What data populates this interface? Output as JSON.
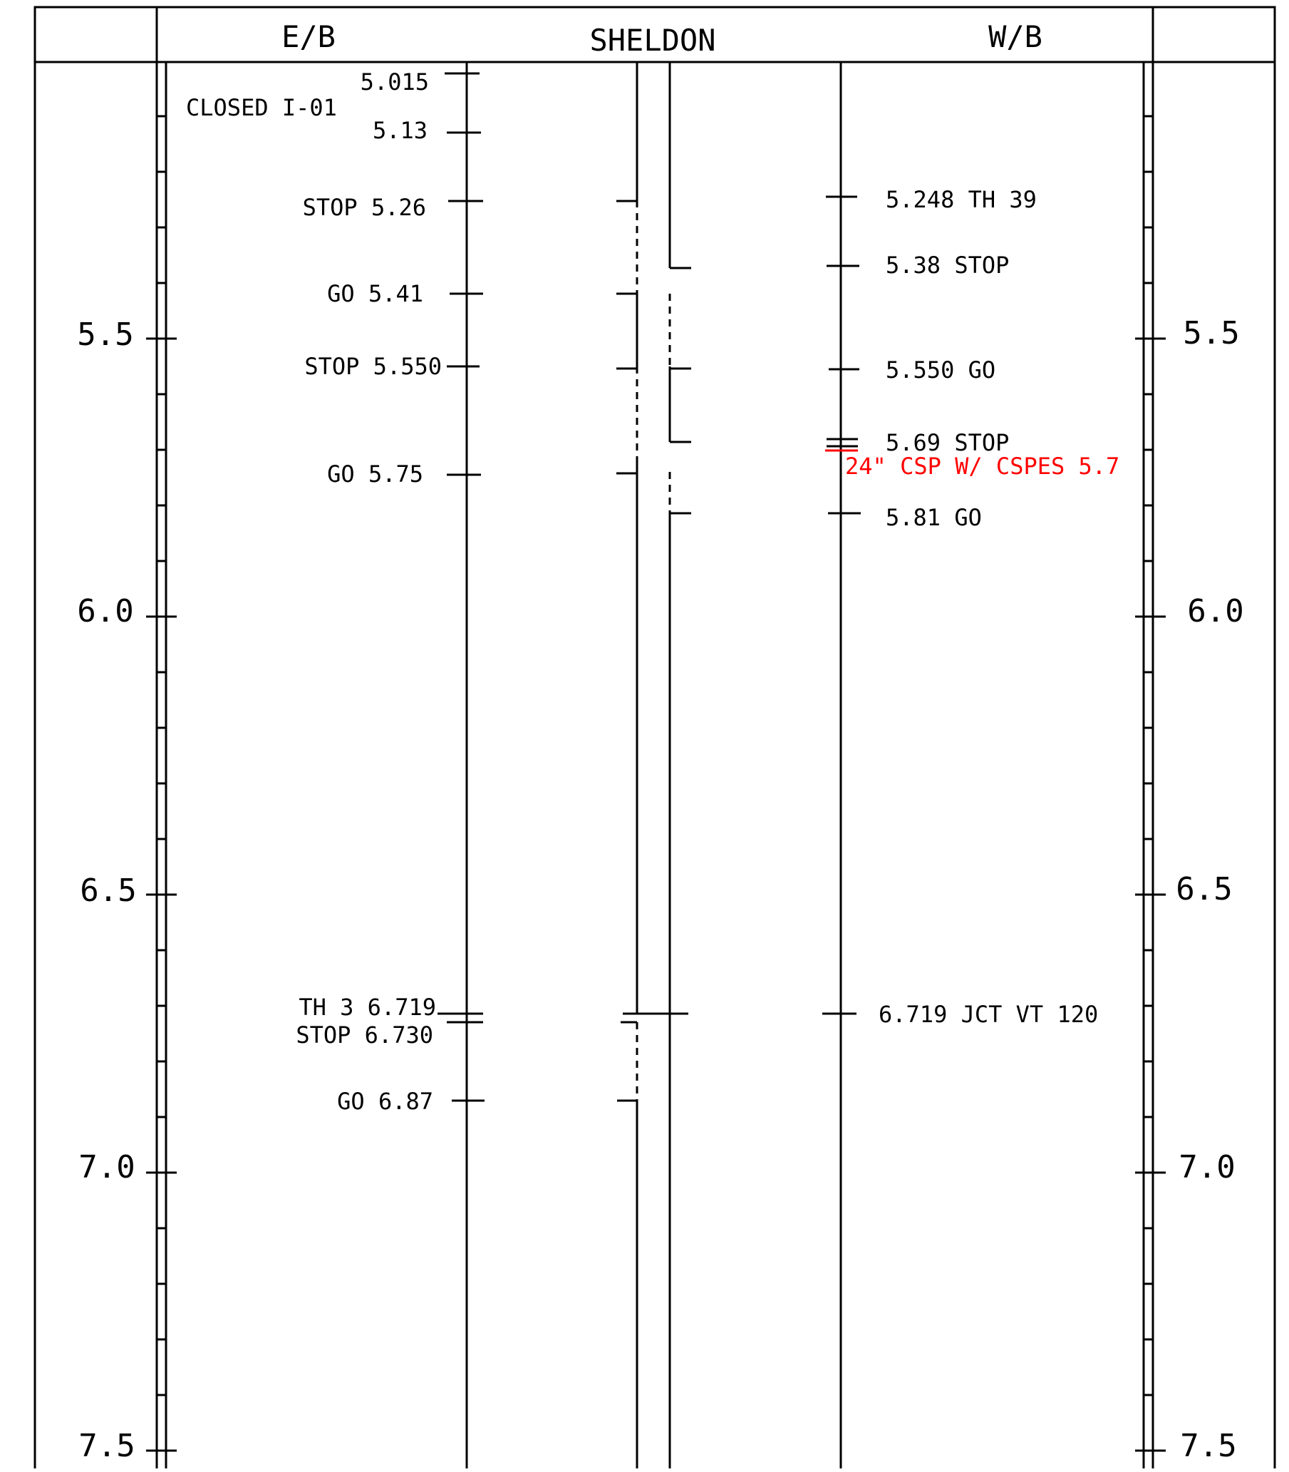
{
  "header": {
    "eastbound": "E/B",
    "route": "SHELDON",
    "westbound": "W/B"
  },
  "mileposts": [
    "5.5",
    "6.0",
    "6.5",
    "7.0",
    "7.5"
  ],
  "eastbound_notes": {
    "closed": "CLOSED I-01",
    "p5015": "5.015",
    "p513": "5.13",
    "stop526": "STOP 5.26",
    "go541": "GO 5.41",
    "stop5550": "STOP 5.550",
    "go575": "GO 5.75",
    "th3": "TH 3 6.719",
    "stop6730": "STOP 6.730",
    "go687": "GO 6.87"
  },
  "westbound_notes": {
    "th39": "5.248 TH 39",
    "stop538": "5.38 STOP",
    "go5550": "5.550 GO",
    "stop569": "5.69 STOP",
    "culvert": "24\" CSP W/ CSPES 5.7",
    "go581": "5.81 GO",
    "jct": "6.719 JCT VT 120"
  },
  "colors": {
    "line": "#000000",
    "culvert_note": "#ff0000",
    "background": "#ffffff"
  }
}
